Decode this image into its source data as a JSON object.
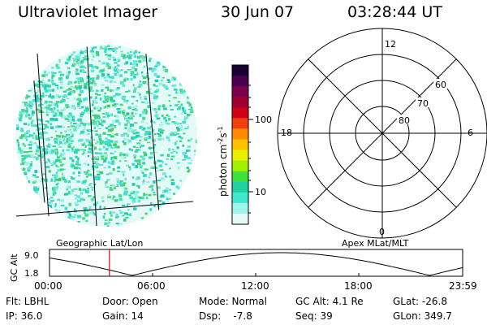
{
  "header": {
    "instrument": "Ultraviolet Imager",
    "date": "30 Jun 07",
    "time": "03:28:44 UT"
  },
  "colorbar": {
    "unit_label": "photon cm",
    "unit_exp1": "-2",
    "unit_mid": "s",
    "unit_exp2": "-1",
    "ticks": [
      "100",
      "10"
    ],
    "colors": [
      "#1a0033",
      "#4a0050",
      "#7a0050",
      "#a00030",
      "#d00018",
      "#f04010",
      "#ff8c00",
      "#ffc000",
      "#e8f000",
      "#a0f000",
      "#40e040",
      "#20d0a0",
      "#40e8d0",
      "#a0f4ec",
      "#e6fbf8"
    ]
  },
  "polar_plot": {
    "lat_labels": [
      "60",
      "70",
      "80"
    ],
    "mlt_labels": {
      "top": "12",
      "left": "18",
      "right": "6",
      "bottom": "0"
    }
  },
  "timeline": {
    "y_axis_label": "GC Alt",
    "y_ticks": [
      "9.0",
      "1.8"
    ],
    "left_title": "Geographic Lat/Lon",
    "right_title": "Apex MLat/MLT",
    "x_ticks": [
      "00:00",
      "06:00",
      "12:00",
      "18:00",
      "23:59"
    ],
    "marker_color": "#e00000"
  },
  "footer": {
    "flt": "Flt: LBHL",
    "ip": "IP: 36.0",
    "door": "Door: Open",
    "gain": "Gain: 14",
    "mode": "Mode: Normal",
    "dsp": "Dsp:    -7.8",
    "gcalt": "GC Alt: 4.1 Re",
    "seq": "Seq: 39",
    "glat": "GLat: -26.8",
    "glon": "GLon: 349.7"
  }
}
